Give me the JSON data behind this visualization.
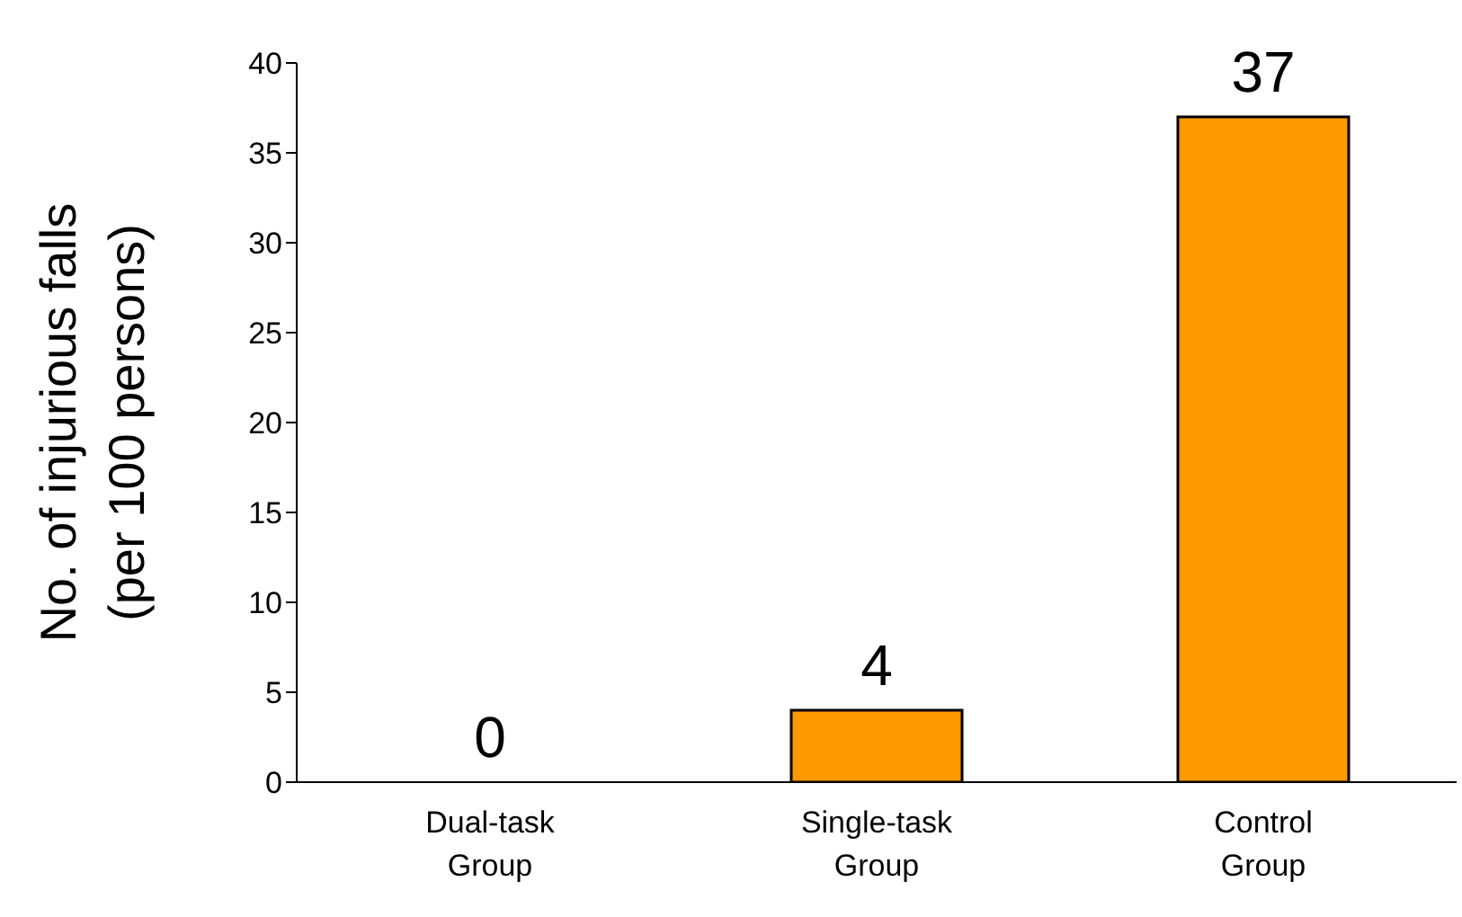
{
  "chart_data": {
    "type": "bar",
    "ylabel": "No. of injurious falls\n(per 100 persons)",
    "categories": [
      "Dual-task\nGroup",
      "Single-task\nGroup",
      "Control\nGroup"
    ],
    "values": [
      0,
      4,
      37
    ],
    "color": "#ff9900",
    "ylim": [
      0,
      40
    ],
    "yticks": [
      0,
      5,
      10,
      15,
      20,
      25,
      30,
      35,
      40
    ],
    "grid": false,
    "data_labels": true
  }
}
